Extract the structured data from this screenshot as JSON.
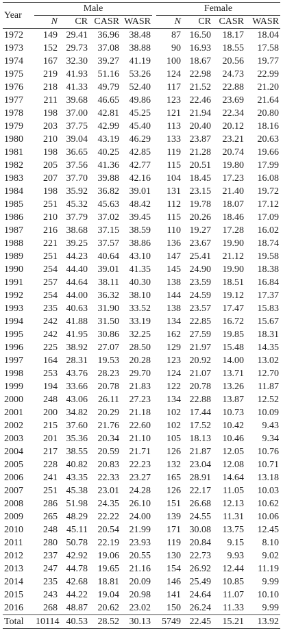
{
  "table": {
    "year_label": "Year",
    "groups": [
      "Male",
      "Female"
    ],
    "columns": [
      "N",
      "CR",
      "CASR",
      "WASR",
      "N",
      "CR",
      "CASR",
      "WASR"
    ],
    "rows": [
      [
        "1972",
        "149",
        "29.41",
        "36.96",
        "38.48",
        "87",
        "16.50",
        "18.17",
        "18.04"
      ],
      [
        "1973",
        "152",
        "29.73",
        "37.08",
        "38.88",
        "90",
        "16.93",
        "18.55",
        "17.58"
      ],
      [
        "1974",
        "167",
        "32.30",
        "39.27",
        "41.19",
        "100",
        "18.67",
        "20.56",
        "19.77"
      ],
      [
        "1975",
        "219",
        "41.93",
        "51.16",
        "53.26",
        "124",
        "22.98",
        "24.73",
        "22.99"
      ],
      [
        "1976",
        "218",
        "41.33",
        "49.79",
        "52.40",
        "117",
        "21.52",
        "22.88",
        "21.20"
      ],
      [
        "1977",
        "211",
        "39.68",
        "46.65",
        "49.86",
        "123",
        "22.46",
        "23.69",
        "21.64"
      ],
      [
        "1978",
        "198",
        "37.00",
        "42.81",
        "45.25",
        "121",
        "21.94",
        "22.34",
        "20.80"
      ],
      [
        "1979",
        "203",
        "37.75",
        "42.99",
        "45.40",
        "113",
        "20.40",
        "20.12",
        "18.16"
      ],
      [
        "1980",
        "210",
        "39.04",
        "43.19",
        "46.29",
        "133",
        "23.87",
        "23.21",
        "20.63"
      ],
      [
        "1981",
        "198",
        "36.65",
        "40.25",
        "42.85",
        "119",
        "21.28",
        "20.74",
        "19.66"
      ],
      [
        "1982",
        "205",
        "37.56",
        "41.36",
        "42.77",
        "115",
        "20.51",
        "19.80",
        "17.99"
      ],
      [
        "1983",
        "207",
        "37.70",
        "39.88",
        "42.16",
        "104",
        "18.45",
        "17.23",
        "16.08"
      ],
      [
        "1984",
        "198",
        "35.92",
        "36.82",
        "39.01",
        "131",
        "23.15",
        "21.40",
        "19.72"
      ],
      [
        "1985",
        "251",
        "45.32",
        "45.63",
        "48.42",
        "112",
        "19.78",
        "18.07",
        "17.12"
      ],
      [
        "1986",
        "210",
        "37.79",
        "37.02",
        "39.45",
        "115",
        "20.26",
        "18.46",
        "17.09"
      ],
      [
        "1987",
        "216",
        "38.68",
        "37.15",
        "38.59",
        "110",
        "19.27",
        "17.28",
        "16.02"
      ],
      [
        "1988",
        "221",
        "39.25",
        "37.57",
        "38.86",
        "136",
        "23.67",
        "19.90",
        "18.74"
      ],
      [
        "1989",
        "251",
        "44.23",
        "40.64",
        "43.10",
        "147",
        "25.41",
        "21.12",
        "19.58"
      ],
      [
        "1990",
        "254",
        "44.40",
        "39.01",
        "41.35",
        "145",
        "24.90",
        "19.90",
        "18.38"
      ],
      [
        "1991",
        "257",
        "44.64",
        "38.11",
        "40.30",
        "138",
        "23.59",
        "18.51",
        "16.84"
      ],
      [
        "1992",
        "254",
        "44.00",
        "36.32",
        "38.10",
        "144",
        "24.59",
        "19.12",
        "17.37"
      ],
      [
        "1993",
        "235",
        "40.63",
        "31.90",
        "33.52",
        "138",
        "23.57",
        "17.47",
        "15.83"
      ],
      [
        "1994",
        "242",
        "41.88",
        "31.50",
        "33.19",
        "134",
        "22.85",
        "16.72",
        "15.67"
      ],
      [
        "1995",
        "242",
        "41.95",
        "30.86",
        "32.25",
        "162",
        "27.59",
        "19.85",
        "18.31"
      ],
      [
        "1996",
        "225",
        "38.92",
        "27.07",
        "28.50",
        "129",
        "21.97",
        "15.48",
        "14.35"
      ],
      [
        "1997",
        "164",
        "28.31",
        "19.53",
        "20.28",
        "123",
        "20.92",
        "14.00",
        "13.02"
      ],
      [
        "1998",
        "253",
        "43.76",
        "28.23",
        "29.70",
        "124",
        "21.07",
        "13.71",
        "12.70"
      ],
      [
        "1999",
        "194",
        "33.66",
        "20.78",
        "21.83",
        "122",
        "20.78",
        "13.26",
        "11.87"
      ],
      [
        "2000",
        "248",
        "43.06",
        "26.11",
        "27.23",
        "134",
        "22.88",
        "13.87",
        "12.52"
      ],
      [
        "2001",
        "200",
        "34.82",
        "20.29",
        "21.18",
        "102",
        "17.44",
        "10.73",
        "10.09"
      ],
      [
        "2002",
        "215",
        "37.60",
        "21.76",
        "22.60",
        "102",
        "17.52",
        "10.42",
        "9.43"
      ],
      [
        "2003",
        "201",
        "35.36",
        "20.34",
        "21.10",
        "105",
        "18.13",
        "10.46",
        "9.34"
      ],
      [
        "2004",
        "217",
        "38.55",
        "20.59",
        "21.71",
        "126",
        "21.87",
        "12.05",
        "10.76"
      ],
      [
        "2005",
        "228",
        "40.82",
        "20.83",
        "22.23",
        "132",
        "23.04",
        "12.08",
        "10.71"
      ],
      [
        "2006",
        "241",
        "43.35",
        "22.33",
        "23.27",
        "165",
        "28.91",
        "14.64",
        "13.18"
      ],
      [
        "2007",
        "251",
        "45.38",
        "23.01",
        "24.28",
        "126",
        "22.17",
        "11.05",
        "10.03"
      ],
      [
        "2008",
        "286",
        "51.98",
        "24.35",
        "26.10",
        "151",
        "26.68",
        "12.13",
        "10.62"
      ],
      [
        "2009",
        "265",
        "48.29",
        "22.22",
        "24.00",
        "139",
        "24.55",
        "11.31",
        "10.06"
      ],
      [
        "2010",
        "248",
        "45.11",
        "20.54",
        "21.99",
        "171",
        "30.08",
        "13.75",
        "12.45"
      ],
      [
        "2011",
        "280",
        "50.78",
        "22.19",
        "23.93",
        "119",
        "20.84",
        "9.15",
        "8.10"
      ],
      [
        "2012",
        "237",
        "42.92",
        "19.06",
        "20.55",
        "130",
        "22.73",
        "9.93",
        "9.02"
      ],
      [
        "2013",
        "247",
        "44.78",
        "19.65",
        "21.16",
        "154",
        "26.92",
        "12.44",
        "11.19"
      ],
      [
        "2014",
        "235",
        "42.68",
        "18.81",
        "20.09",
        "146",
        "25.49",
        "10.85",
        "9.99"
      ],
      [
        "2015",
        "243",
        "44.22",
        "19.04",
        "20.98",
        "141",
        "24.64",
        "11.07",
        "10.10"
      ],
      [
        "2016",
        "268",
        "48.87",
        "20.62",
        "23.02",
        "150",
        "26.24",
        "11.33",
        "9.99"
      ],
      [
        "Total",
        "10114",
        "40.53",
        "28.52",
        "30.13",
        "5749",
        "22.45",
        "15.21",
        "13.92"
      ]
    ]
  }
}
